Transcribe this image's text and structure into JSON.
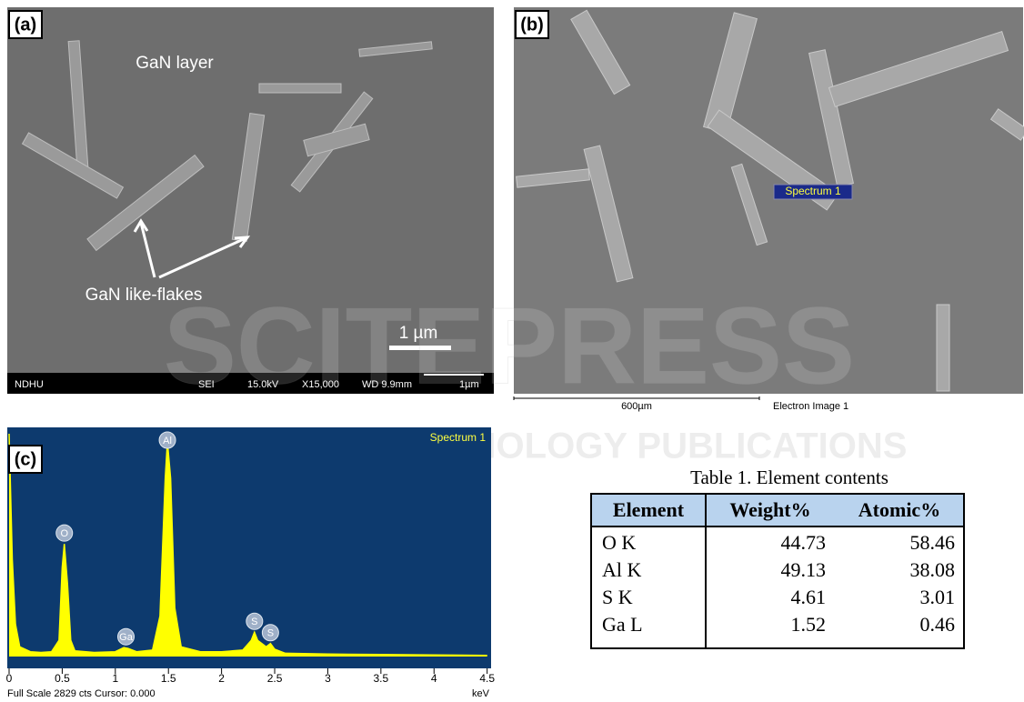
{
  "panel_a": {
    "label": "(a)",
    "annotation_layer": "GaN layer",
    "annotation_flakes": "GaN like-flakes",
    "scale": "1 µm",
    "info_bar": [
      "NDHU",
      "SEI",
      "15.0kV",
      "X15,000",
      "WD 9.9mm",
      "1µm"
    ]
  },
  "panel_b": {
    "label": "(b)",
    "spectrum_tag": "Spectrum 1",
    "scale": "600µm",
    "caption": "Electron Image 1"
  },
  "watermark": [
    "SCITEPRESS",
    "SCIENCE AND TECHNOLOGY PUBLICATIONS"
  ],
  "chart_data": {
    "type": "line",
    "label": "(c)",
    "title": "Spectrum 1",
    "color": "#ffff00",
    "x": [
      0,
      0.03,
      0.06,
      0.1,
      0.2,
      0.3,
      0.4,
      0.47,
      0.5,
      0.52,
      0.55,
      0.58,
      0.62,
      0.8,
      1.0,
      1.08,
      1.12,
      1.2,
      1.35,
      1.42,
      1.47,
      1.49,
      1.52,
      1.56,
      1.62,
      1.8,
      2.0,
      2.2,
      2.28,
      2.31,
      2.34,
      2.42,
      2.46,
      2.5,
      2.6,
      3.0,
      3.5,
      4.0,
      4.5
    ],
    "values": [
      2750,
      1200,
      400,
      120,
      60,
      50,
      60,
      200,
      1100,
      1390,
      900,
      200,
      70,
      50,
      60,
      110,
      100,
      60,
      80,
      500,
      2200,
      2650,
      2200,
      600,
      120,
      60,
      60,
      80,
      200,
      300,
      200,
      120,
      160,
      90,
      40,
      30,
      25,
      20,
      15
    ],
    "xlim": [
      0,
      4.52
    ],
    "ylim": [
      0,
      2829
    ],
    "xticks": [
      0,
      0.5,
      1,
      1.5,
      2,
      2.5,
      3,
      3.5,
      4,
      4.5
    ],
    "xlabel": "keV",
    "footer": "Full Scale 2829 cts Cursor: 0.000",
    "peaks": [
      {
        "label": "O",
        "x": 0.52
      },
      {
        "label": "Ga",
        "x": 1.1
      },
      {
        "label": "Al",
        "x": 1.49
      },
      {
        "label": "S",
        "x": 2.31
      },
      {
        "label": "S",
        "x": 2.46
      }
    ]
  },
  "table": {
    "title": "Table 1. Element contents",
    "header": [
      "Element",
      "Weight%",
      "Atomic%"
    ],
    "rows": [
      [
        "O K",
        44.73,
        58.46
      ],
      [
        "Al K",
        49.13,
        38.08
      ],
      [
        "S K",
        4.61,
        3.01
      ],
      [
        "Ga L",
        1.52,
        0.46
      ]
    ]
  }
}
